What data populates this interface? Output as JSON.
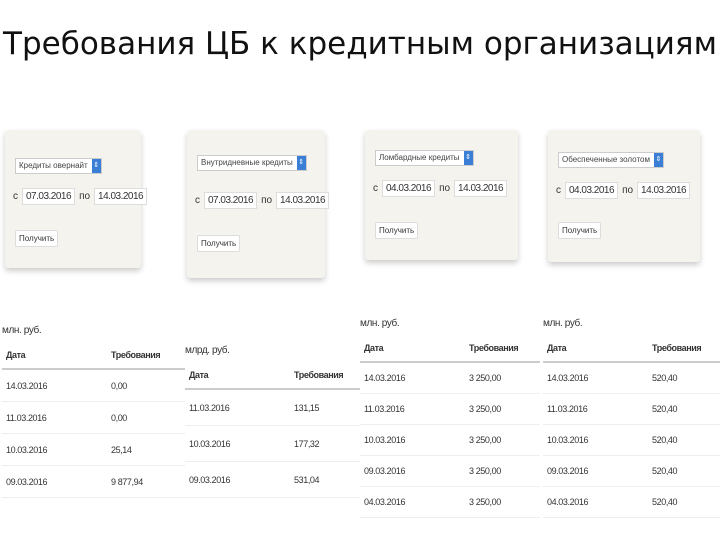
{
  "title": "Требования ЦБ к кредитным организациям",
  "forms": [
    {
      "select": "Кредиты овернайт",
      "from_label": "с",
      "from": "07.03.2016",
      "to_label": "по",
      "to": "14.03.2016",
      "button": "Получить"
    },
    {
      "select": "Внутридневные кредиты",
      "from_label": "с",
      "from": "07.03.2016",
      "to_label": "по",
      "to": "14.03.2016",
      "button": "Получить"
    },
    {
      "select": "Ломбардные кредиты",
      "from_label": "с",
      "from": "04.03.2016",
      "to_label": "по",
      "to": "14.03.2016",
      "button": "Получить"
    },
    {
      "select": "Обеспеченные золотом",
      "from_label": "с",
      "from": "04.03.2016",
      "to_label": "по",
      "to": "14.03.2016",
      "button": "Получить"
    }
  ],
  "tables": [
    {
      "unit": "млн. руб.",
      "headers": [
        "Дата",
        "Требования"
      ],
      "rows": [
        [
          "14.03.2016",
          "0,00"
        ],
        [
          "11.03.2016",
          "0,00"
        ],
        [
          "10.03.2016",
          "25,14"
        ],
        [
          "09.03.2016",
          "9 877,94"
        ]
      ]
    },
    {
      "unit": "млрд. руб.",
      "headers": [
        "Дата",
        "Требования"
      ],
      "rows": [
        [
          "11.03.2016",
          "131,15"
        ],
        [
          "10.03.2016",
          "177,32"
        ],
        [
          "09.03.2016",
          "531,04"
        ]
      ]
    },
    {
      "unit": "млн. руб.",
      "headers": [
        "Дата",
        "Требования"
      ],
      "rows": [
        [
          "14.03.2016",
          "3 250,00"
        ],
        [
          "11.03.2016",
          "3 250,00"
        ],
        [
          "10.03.2016",
          "3 250,00"
        ],
        [
          "09.03.2016",
          "3 250,00"
        ],
        [
          "04.03.2016",
          "3 250,00"
        ]
      ]
    },
    {
      "unit": "млн. руб.",
      "headers": [
        "Дата",
        "Требования"
      ],
      "rows": [
        [
          "14.03.2016",
          "520,40"
        ],
        [
          "11.03.2016",
          "520,40"
        ],
        [
          "10.03.2016",
          "520,40"
        ],
        [
          "09.03.2016",
          "520,40"
        ],
        [
          "04.03.2016",
          "520,40"
        ]
      ]
    }
  ]
}
